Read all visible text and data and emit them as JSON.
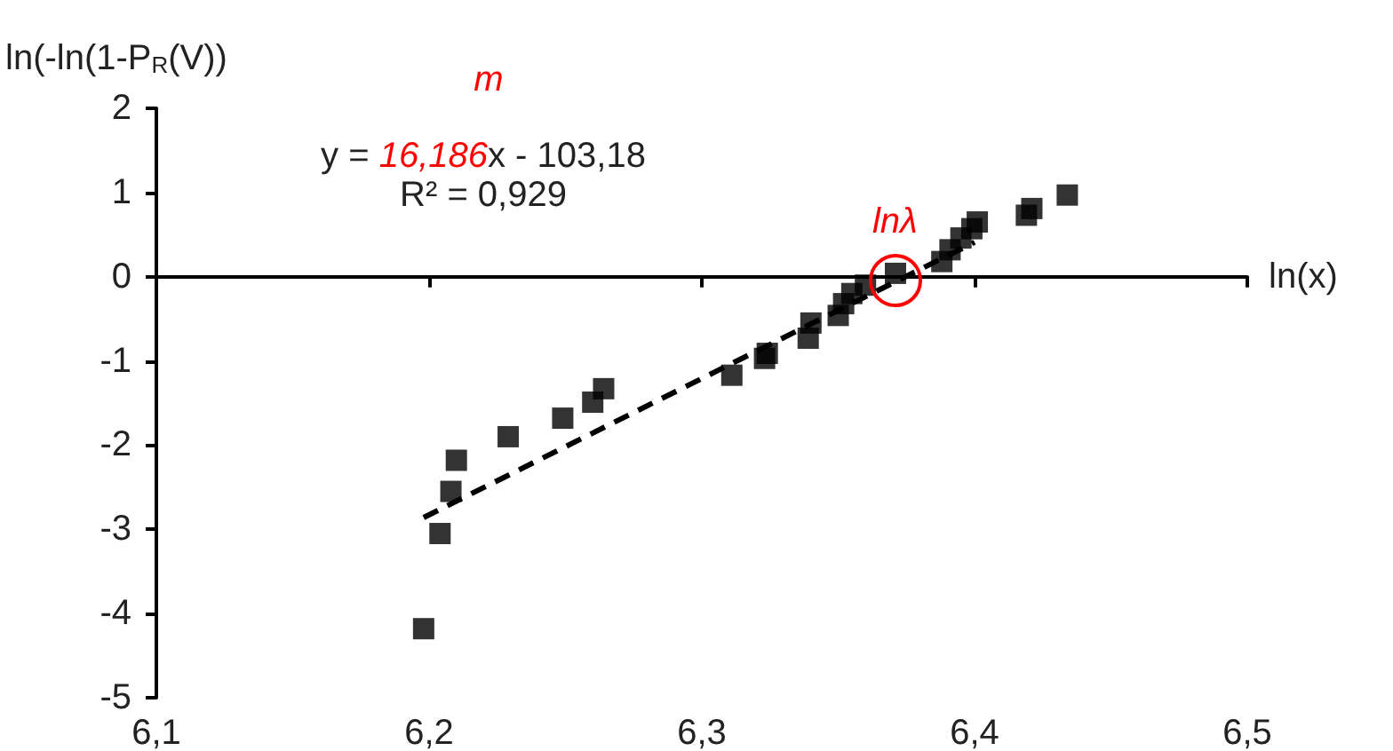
{
  "chart_data": {
    "type": "scatter",
    "xlabel": "ln(x)",
    "ylabel": "ln(-ln(1-P$_{R}$(V))",
    "xlim": [
      6.1,
      6.5
    ],
    "xticks": [
      {
        "value": 6.1,
        "label": "6,1"
      },
      {
        "value": 6.2,
        "label": "6,2"
      },
      {
        "value": 6.3,
        "label": "6,3"
      },
      {
        "value": 6.4,
        "label": "6,4"
      },
      {
        "value": 6.5,
        "label": "6,5"
      }
    ],
    "ylim": [
      -5,
      2
    ],
    "yticks": [
      -5,
      -4,
      -3,
      -2,
      -1,
      0,
      1,
      2
    ],
    "marker": "square",
    "series": [
      {
        "color": "#000000",
        "x": [
          6.198,
          6.204,
          6.208,
          6.21,
          6.229,
          6.249,
          6.26,
          6.264,
          6.311,
          6.323,
          6.324,
          6.339,
          6.34,
          6.35,
          6.352,
          6.355,
          6.36,
          6.371,
          6.388,
          6.391,
          6.395,
          6.399,
          6.401,
          6.419,
          6.421,
          6.434
        ],
        "values": [
          -4.18,
          -3.05,
          -2.55,
          -2.18,
          -1.9,
          -1.68,
          -1.49,
          -1.33,
          -1.17,
          -0.97,
          -0.91,
          -0.73,
          -0.55,
          -0.46,
          -0.32,
          -0.2,
          -0.1,
          0.04,
          0.18,
          0.32,
          0.46,
          0.57,
          0.65,
          0.73,
          0.81,
          0.97
        ]
      },
      {
        "type": "line",
        "color": "#000000",
        "line_style": "dashed",
        "marker": "none",
        "x": [
          6.198,
          6.4
        ],
        "values": [
          -2.86,
          0.41
        ]
      }
    ],
    "annotations": [
      "m",
      "y = 16,186x - 103,18",
      "R² = 0,929",
      {
        "text": "lnλ",
        "x": 6.371,
        "y": 0.04
      }
    ]
  }
}
